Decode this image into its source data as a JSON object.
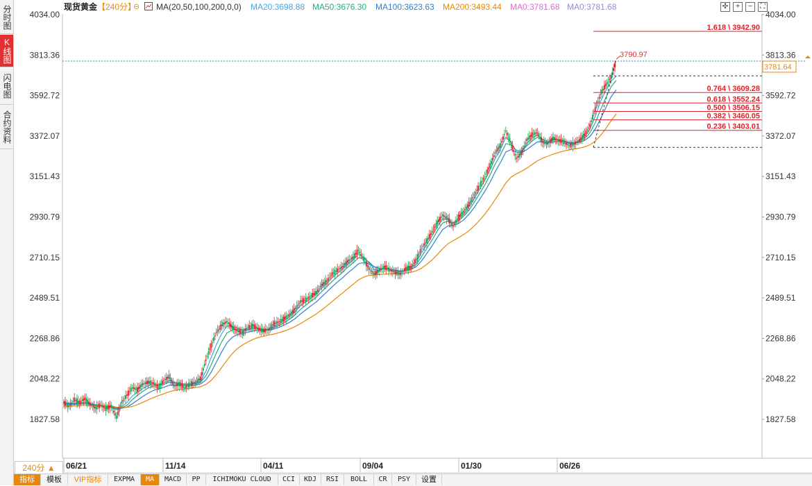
{
  "left_tabs": [
    {
      "label": "分时图",
      "active": false
    },
    {
      "label": "K线图",
      "active": true
    },
    {
      "label": "闪电图",
      "active": false
    },
    {
      "label": "合约资料",
      "active": false
    }
  ],
  "header": {
    "symbol": "现货黄金",
    "period": "【240分】",
    "ma_spec": "MA(20,50,100,200,0,0)",
    "ma20": "MA20:3698.88",
    "ma50": "MA50:3676.30",
    "ma100": "MA100:3623.63",
    "ma200": "MA200:3493.44",
    "ma0a": "MA0:3781.68",
    "ma0b": "MA0:3781.68"
  },
  "colors": {
    "ma20": "#3fa7e8",
    "ma50": "#21b07a",
    "ma100": "#2c7fd6",
    "ma200": "#e8870a",
    "ma0a": "#e06ad0",
    "ma0b": "#8f8fe0",
    "fib": "#e0202a",
    "up": "#e0202a",
    "down": "#1aa05a",
    "accent": "#e8870a"
  },
  "chart_data": {
    "type": "line",
    "title": "现货黄金",
    "ylim": [
      1700,
      4034
    ],
    "y_ticks": [
      "4034.00",
      "3813.36",
      "3592.72",
      "3372.07",
      "3151.43",
      "2930.79",
      "2710.15",
      "2489.51",
      "2268.86",
      "2048.22",
      "1827.58"
    ],
    "x_ticks": [
      "06/21",
      "11/14",
      "04/11",
      "09/04",
      "01/30",
      "06/26"
    ],
    "series": [
      {
        "name": "现货黄金",
        "key": "price",
        "values": [
          1920,
          1900,
          1935,
          1920,
          1940,
          1910,
          1890,
          1905,
          1885,
          1900,
          1840,
          1920,
          1960,
          2000,
          1990,
          2020,
          2030,
          2025,
          2000,
          2040,
          2060,
          2010,
          2020,
          2000,
          2020,
          2030,
          2050,
          2150,
          2230,
          2300,
          2340,
          2360,
          2330,
          2310,
          2300,
          2330,
          2340,
          2320,
          2310,
          2320,
          2350,
          2360,
          2380,
          2400,
          2430,
          2470,
          2480,
          2500,
          2520,
          2560,
          2580,
          2620,
          2640,
          2660,
          2690,
          2710,
          2750,
          2700,
          2650,
          2620,
          2640,
          2660,
          2640,
          2630,
          2620,
          2650,
          2660,
          2700,
          2760,
          2800,
          2850,
          2900,
          2940,
          2920,
          2880,
          2930,
          2960,
          3000,
          3050,
          3100,
          3150,
          3210,
          3280,
          3320,
          3400,
          3330,
          3250,
          3280,
          3350,
          3380,
          3390,
          3340,
          3330,
          3360,
          3350,
          3340,
          3320,
          3330,
          3350,
          3380,
          3430,
          3520,
          3600,
          3650,
          3690,
          3781
        ]
      },
      {
        "name": "MA20",
        "key": "ma20",
        "values": [
          1920,
          1915,
          1915,
          1918,
          1920,
          1912,
          1905,
          1902,
          1896,
          1893,
          1880,
          1895,
          1920,
          1955,
          1975,
          1995,
          2010,
          2020,
          2018,
          2025,
          2040,
          2030,
          2025,
          2020,
          2020,
          2025,
          2035,
          2090,
          2165,
          2235,
          2295,
          2335,
          2335,
          2325,
          2315,
          2320,
          2330,
          2325,
          2318,
          2320,
          2335,
          2350,
          2368,
          2390,
          2415,
          2448,
          2468,
          2490,
          2510,
          2545,
          2568,
          2600,
          2625,
          2648,
          2675,
          2698,
          2728,
          2712,
          2680,
          2645,
          2640,
          2650,
          2645,
          2638,
          2630,
          2642,
          2655,
          2685,
          2735,
          2780,
          2828,
          2878,
          2920,
          2920,
          2895,
          2918,
          2948,
          2985,
          3030,
          3080,
          3130,
          3188,
          3250,
          3300,
          3365,
          3340,
          3285,
          3285,
          3330,
          3362,
          3378,
          3355,
          3340,
          3355,
          3352,
          3345,
          3330,
          3332,
          3345,
          3368,
          3410,
          3480,
          3560,
          3620,
          3670,
          3699
        ]
      },
      {
        "name": "MA50",
        "key": "ma50",
        "values": [
          1915,
          1912,
          1912,
          1915,
          1918,
          1913,
          1908,
          1904,
          1899,
          1895,
          1885,
          1890,
          1905,
          1935,
          1958,
          1980,
          1998,
          2010,
          2012,
          2018,
          2030,
          2026,
          2022,
          2018,
          2018,
          2022,
          2030,
          2065,
          2125,
          2190,
          2250,
          2298,
          2315,
          2318,
          2314,
          2316,
          2322,
          2322,
          2318,
          2318,
          2328,
          2340,
          2356,
          2375,
          2398,
          2428,
          2450,
          2472,
          2493,
          2524,
          2550,
          2580,
          2605,
          2630,
          2658,
          2680,
          2708,
          2705,
          2685,
          2658,
          2648,
          2650,
          2646,
          2640,
          2634,
          2640,
          2650,
          2672,
          2715,
          2760,
          2805,
          2855,
          2898,
          2908,
          2898,
          2910,
          2935,
          2968,
          3010,
          3058,
          3105,
          3160,
          3220,
          3270,
          3330,
          3325,
          3295,
          3290,
          3318,
          3345,
          3365,
          3352,
          3342,
          3350,
          3350,
          3346,
          3336,
          3335,
          3342,
          3358,
          3390,
          3445,
          3515,
          3580,
          3640,
          3676
        ]
      },
      {
        "name": "MA100",
        "key": "ma100",
        "values": [
          1910,
          1908,
          1908,
          1910,
          1912,
          1910,
          1906,
          1903,
          1899,
          1896,
          1889,
          1888,
          1895,
          1912,
          1932,
          1952,
          1970,
          1985,
          1993,
          2002,
          2013,
          2014,
          2013,
          2012,
          2012,
          2015,
          2021,
          2042,
          2085,
          2140,
          2195,
          2245,
          2275,
          2290,
          2296,
          2302,
          2310,
          2313,
          2313,
          2314,
          2320,
          2330,
          2343,
          2358,
          2378,
          2402,
          2425,
          2447,
          2468,
          2496,
          2522,
          2550,
          2576,
          2600,
          2627,
          2650,
          2675,
          2682,
          2675,
          2660,
          2650,
          2648,
          2645,
          2640,
          2636,
          2638,
          2645,
          2660,
          2692,
          2732,
          2774,
          2820,
          2862,
          2882,
          2885,
          2895,
          2915,
          2945,
          2982,
          3025,
          3070,
          3120,
          3178,
          3228,
          3285,
          3298,
          3285,
          3282,
          3298,
          3320,
          3340,
          3340,
          3336,
          3340,
          3342,
          3342,
          3336,
          3334,
          3338,
          3348,
          3370,
          3410,
          3465,
          3525,
          3585,
          3624
        ]
      },
      {
        "name": "MA200",
        "key": "ma200",
        "values": [
          1900,
          1900,
          1900,
          1902,
          1904,
          1904,
          1903,
          1902,
          1900,
          1898,
          1894,
          1892,
          1893,
          1898,
          1908,
          1920,
          1933,
          1946,
          1957,
          1967,
          1978,
          1985,
          1990,
          1994,
          1997,
          2001,
          2006,
          2018,
          2040,
          2072,
          2110,
          2150,
          2186,
          2214,
          2234,
          2250,
          2264,
          2274,
          2281,
          2287,
          2293,
          2301,
          2310,
          2321,
          2334,
          2350,
          2367,
          2385,
          2403,
          2424,
          2446,
          2470,
          2494,
          2517,
          2541,
          2564,
          2588,
          2603,
          2612,
          2615,
          2617,
          2619,
          2621,
          2622,
          2623,
          2625,
          2629,
          2637,
          2652,
          2673,
          2697,
          2726,
          2758,
          2784,
          2802,
          2818,
          2835,
          2856,
          2882,
          2912,
          2946,
          2984,
          3027,
          3070,
          3116,
          3148,
          3166,
          3180,
          3197,
          3217,
          3237,
          3251,
          3262,
          3273,
          3282,
          3290,
          3296,
          3301,
          3306,
          3313,
          3324,
          3344,
          3375,
          3412,
          3455,
          3493
        ]
      }
    ],
    "max_label": "3790.97",
    "current_price": "3781.64",
    "fib_levels": [
      {
        "label": "1.618 \\ 3942.90",
        "value": 3942.9
      },
      {
        "label": "0.764 \\ 3609.28",
        "value": 3609.28
      },
      {
        "label": "0.618 \\ 3552.24",
        "value": 3552.24
      },
      {
        "label": "0.500 \\ 3506.15",
        "value": 3506.15
      },
      {
        "label": "0.382 \\ 3460.05",
        "value": 3460.05
      },
      {
        "label": "0.236 \\ 3403.01",
        "value": 3403.01
      }
    ],
    "fib_bounds": {
      "top": 3700,
      "bottom": 3310
    },
    "legend": "top",
    "grid": false
  },
  "period_box": "240分 ▲",
  "toolbar": [
    {
      "label": "指标",
      "style": "orange"
    },
    {
      "label": "模板",
      "style": ""
    },
    {
      "label": "VIP指标",
      "style": "vip"
    },
    {
      "label": "EXPMA",
      "style": "mono"
    },
    {
      "label": "MA",
      "style": "orange"
    },
    {
      "label": "MACD",
      "style": "mono"
    },
    {
      "label": "PP",
      "style": "mono"
    },
    {
      "label": "ICHIMOKU CLOUD",
      "style": "mono"
    },
    {
      "label": "CCI",
      "style": "mono"
    },
    {
      "label": "KDJ",
      "style": "mono"
    },
    {
      "label": "RSI",
      "style": "mono"
    },
    {
      "label": "BOLL",
      "style": "mono"
    },
    {
      "label": "CR",
      "style": "mono"
    },
    {
      "label": "PSY",
      "style": "mono"
    },
    {
      "label": "设置",
      "style": ""
    }
  ]
}
